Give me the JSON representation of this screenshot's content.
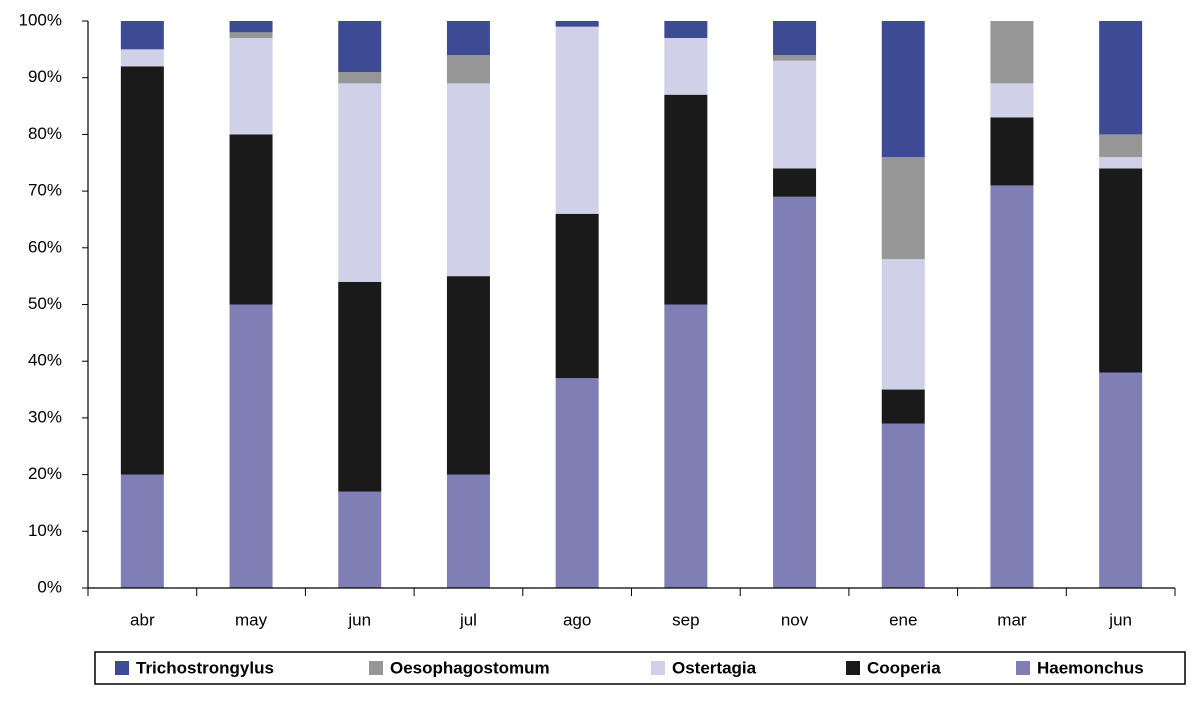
{
  "chart_data": {
    "type": "stacked_bar_percent",
    "categories": [
      "abr",
      "may",
      "jun",
      "jul",
      "ago",
      "sep",
      "nov",
      "ene",
      "mar",
      "jun"
    ],
    "series": [
      {
        "name": "Trichostrongylus",
        "color": "#3d4a94",
        "values": [
          5,
          2,
          9,
          6,
          1,
          3,
          6,
          24,
          0,
          20
        ]
      },
      {
        "name": "Oesophagostomum",
        "color": "#969696",
        "values": [
          0,
          1,
          2,
          5,
          0,
          0,
          1,
          18,
          11,
          4
        ]
      },
      {
        "name": "Ostertagia",
        "color": "#d0d0e8",
        "values": [
          3,
          17,
          35,
          34,
          33,
          10,
          19,
          23,
          6,
          2
        ]
      },
      {
        "name": "Cooperia",
        "color": "#1a1a1a",
        "values": [
          72,
          30,
          37,
          35,
          29,
          37,
          5,
          6,
          12,
          36
        ]
      },
      {
        "name": "Haemonchus",
        "color": "#7f7fb5",
        "values": [
          20,
          50,
          17,
          20,
          37,
          50,
          69,
          29,
          71,
          38
        ]
      }
    ],
    "ylim": [
      0,
      100
    ],
    "yticks": [
      {
        "value": 0,
        "label": "0%"
      },
      {
        "value": 10,
        "label": "10%"
      },
      {
        "value": 20,
        "label": "20%"
      },
      {
        "value": 30,
        "label": "30%"
      },
      {
        "value": 40,
        "label": "40%"
      },
      {
        "value": 50,
        "label": "50%"
      },
      {
        "value": 60,
        "label": "60%"
      },
      {
        "value": 70,
        "label": "70%"
      },
      {
        "value": 80,
        "label": "80%"
      },
      {
        "value": 90,
        "label": "90%"
      },
      {
        "value": 100,
        "label": "100%"
      }
    ],
    "legend": "bottom"
  }
}
